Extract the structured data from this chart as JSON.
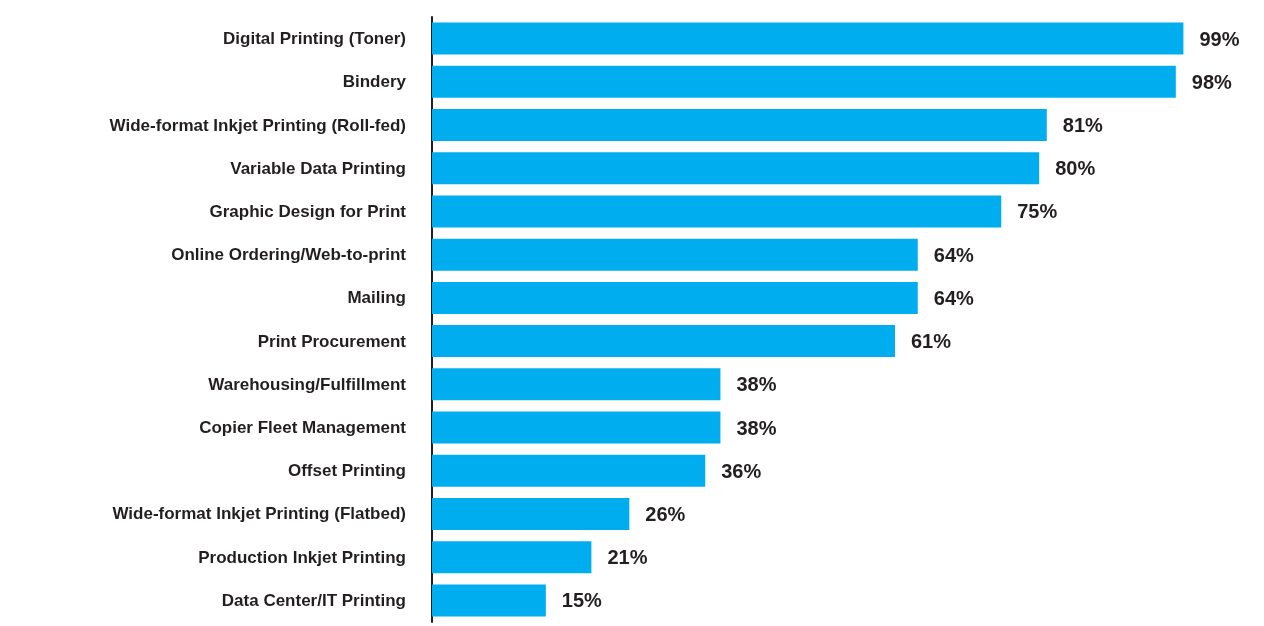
{
  "chart_data": {
    "type": "bar",
    "orientation": "horizontal",
    "categories": [
      "Digital Printing (Toner)",
      "Bindery",
      "Wide-format Inkjet Printing (Roll-fed)",
      "Variable Data Printing",
      "Graphic Design for Print",
      "Online Ordering/Web-to-print",
      "Mailing",
      "Print Procurement",
      "Warehousing/Fulfillment",
      "Copier Fleet Management",
      "Offset Printing",
      "Wide-format Inkjet Printing (Flatbed)",
      "Production Inkjet Printing",
      "Data Center/IT Printing"
    ],
    "values": [
      99,
      98,
      81,
      80,
      75,
      64,
      64,
      61,
      38,
      38,
      36,
      26,
      21,
      15
    ],
    "value_labels": [
      "99%",
      "98%",
      "81%",
      "80%",
      "75%",
      "64%",
      "64%",
      "61%",
      "38%",
      "38%",
      "36%",
      "26%",
      "21%",
      "15%"
    ],
    "color": "#00aeef"
  }
}
